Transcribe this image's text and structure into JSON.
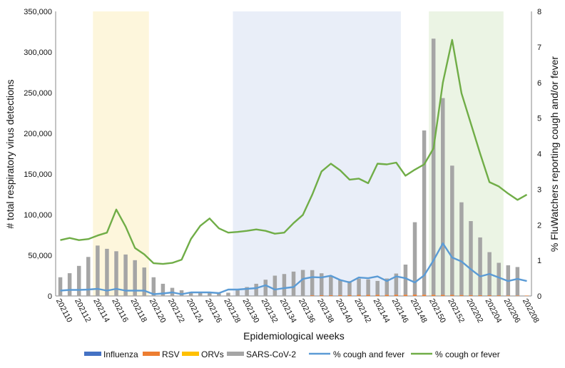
{
  "chart_data": {
    "type": "bar",
    "xlabel": "Epidemiological weeks",
    "ylabel_left": "# total respiratory virus detections",
    "ylabel_right": "% FluWatchers reporting cough and/or fever",
    "ylim_left": [
      0,
      350000
    ],
    "ylim_right": [
      0,
      8
    ],
    "left_ticks": [
      "0",
      "50,000",
      "100,000",
      "150,000",
      "200,000",
      "250,000",
      "300,000",
      "350,000"
    ],
    "left_tick_values": [
      0,
      50000,
      100000,
      150000,
      200000,
      250000,
      300000,
      350000
    ],
    "right_ticks": [
      "0",
      "1",
      "2",
      "3",
      "4",
      "5",
      "6",
      "7",
      "8"
    ],
    "right_tick_values": [
      0,
      1,
      2,
      3,
      4,
      5,
      6,
      7,
      8
    ],
    "categories": [
      "202110",
      "202111",
      "202112",
      "202113",
      "202114",
      "202115",
      "202116",
      "202117",
      "202118",
      "202119",
      "202120",
      "202121",
      "202122",
      "202123",
      "202124",
      "202125",
      "202126",
      "202127",
      "202128",
      "202129",
      "202130",
      "202131",
      "202132",
      "202133",
      "202134",
      "202135",
      "202136",
      "202137",
      "202138",
      "202139",
      "202140",
      "202141",
      "202142",
      "202143",
      "202144",
      "202145",
      "202146",
      "202147",
      "202148",
      "202149",
      "202150",
      "202151",
      "202152",
      "202201",
      "202202",
      "202203",
      "202204",
      "202205",
      "202206",
      "202207",
      "202208"
    ],
    "x_tick_labels": [
      "202110",
      "202112",
      "202114",
      "202116",
      "202118",
      "202120",
      "202122",
      "202124",
      "202126",
      "202128",
      "202130",
      "202132",
      "202134",
      "202136",
      "202138",
      "202140",
      "202142",
      "202144",
      "202146",
      "202148",
      "202150",
      "202152",
      "202202",
      "202204",
      "202206",
      "202208"
    ],
    "shaded_periods": [
      {
        "start": "202114",
        "end": "202119",
        "color": "#fdf6dc"
      },
      {
        "start": "202129",
        "end": "202146",
        "color": "#e9eef8"
      },
      {
        "start": "202150",
        "end": "202205",
        "color": "#ebf4e4"
      }
    ],
    "series": [
      {
        "name": "Influenza",
        "type": "bar",
        "color": "#4472c4",
        "values": [
          0,
          0,
          0,
          0,
          0,
          0,
          0,
          0,
          0,
          0,
          0,
          0,
          0,
          0,
          0,
          0,
          0,
          0,
          0,
          0,
          0,
          0,
          0,
          0,
          0,
          0,
          0,
          0,
          0,
          0,
          0,
          0,
          0,
          0,
          0,
          0,
          0,
          0,
          0,
          0,
          0,
          0,
          0,
          0,
          0,
          0,
          0,
          0,
          0,
          0,
          0
        ]
      },
      {
        "name": "RSV",
        "type": "bar",
        "color": "#ed7d31",
        "values": [
          0,
          0,
          0,
          0,
          0,
          0,
          0,
          0,
          0,
          0,
          0,
          0,
          0,
          0,
          0,
          0,
          0,
          0,
          0,
          0,
          0,
          0,
          0,
          0,
          0,
          0,
          0,
          800,
          900,
          1000,
          1100,
          1200,
          1300,
          1400,
          1500,
          1500,
          1600,
          1600,
          1700,
          1600,
          1500,
          1400,
          1300,
          1200,
          1100,
          1000,
          900,
          800,
          700,
          600,
          500
        ]
      },
      {
        "name": "ORVs",
        "type": "bar",
        "color": "#ffc000",
        "values": [
          0,
          0,
          0,
          0,
          0,
          0,
          0,
          0,
          0,
          0,
          0,
          0,
          0,
          0,
          0,
          0,
          0,
          0,
          0,
          0,
          0,
          0,
          0,
          0,
          0,
          0,
          0,
          0,
          0,
          0,
          0,
          0,
          0,
          0,
          0,
          0,
          0,
          0,
          0,
          0,
          0,
          0,
          0,
          0,
          0,
          0,
          0,
          0,
          0,
          0,
          0
        ]
      },
      {
        "name": "SARS-CoV-2",
        "type": "bar",
        "color": "#a5a5a5",
        "values": [
          23000,
          28000,
          37000,
          48000,
          62000,
          58000,
          55000,
          51000,
          44000,
          35000,
          23000,
          15000,
          10000,
          7000,
          5000,
          4000,
          3500,
          3000,
          4000,
          7000,
          11000,
          15000,
          20000,
          25000,
          27000,
          30000,
          32000,
          31000,
          27000,
          23000,
          19000,
          17000,
          20000,
          19000,
          17000,
          20000,
          26000,
          37000,
          89000,
          202000,
          315000,
          242000,
          159000,
          114000,
          91000,
          71000,
          53000,
          40000,
          37000,
          35000,
          0
        ]
      },
      {
        "name": "% cough and fever",
        "type": "line",
        "color": "#5b9bd5",
        "axis": "right",
        "values": [
          0.15,
          0.17,
          0.17,
          0.18,
          0.2,
          0.15,
          0.2,
          0.15,
          0.15,
          0.15,
          0.05,
          0.07,
          0.1,
          0.05,
          0.1,
          0.1,
          0.1,
          0.08,
          0.18,
          0.18,
          0.2,
          0.22,
          0.3,
          0.18,
          0.22,
          0.25,
          0.48,
          0.53,
          0.52,
          0.57,
          0.45,
          0.38,
          0.52,
          0.5,
          0.55,
          0.42,
          0.55,
          0.5,
          0.38,
          0.58,
          1.0,
          1.48,
          1.08,
          0.97,
          0.75,
          0.55,
          0.62,
          0.52,
          0.42,
          0.48,
          0.42
        ]
      },
      {
        "name": "% cough or fever",
        "type": "line",
        "color": "#70ad47",
        "axis": "right",
        "values": [
          1.57,
          1.63,
          1.57,
          1.6,
          1.7,
          1.78,
          2.43,
          1.95,
          1.35,
          1.17,
          0.92,
          0.9,
          0.93,
          1.02,
          1.6,
          1.97,
          2.18,
          1.9,
          1.78,
          1.8,
          1.83,
          1.87,
          1.83,
          1.75,
          1.78,
          2.05,
          2.28,
          2.85,
          3.5,
          3.72,
          3.53,
          3.27,
          3.3,
          3.17,
          3.72,
          3.7,
          3.75,
          3.38,
          3.55,
          3.7,
          4.15,
          6.0,
          7.2,
          5.7,
          4.85,
          4.0,
          3.2,
          3.08,
          2.88,
          2.7,
          2.85
        ]
      }
    ],
    "legend": [
      {
        "label": "Influenza",
        "kind": "box",
        "color": "#4472c4"
      },
      {
        "label": "RSV",
        "kind": "box",
        "color": "#ed7d31"
      },
      {
        "label": "ORVs",
        "kind": "box",
        "color": "#ffc000"
      },
      {
        "label": "SARS-CoV-2",
        "kind": "box",
        "color": "#a5a5a5"
      },
      {
        "label": "% cough and fever",
        "kind": "line",
        "color": "#5b9bd5"
      },
      {
        "label": "% cough or fever",
        "kind": "line",
        "color": "#70ad47"
      }
    ],
    "legend_position": "bottom"
  }
}
